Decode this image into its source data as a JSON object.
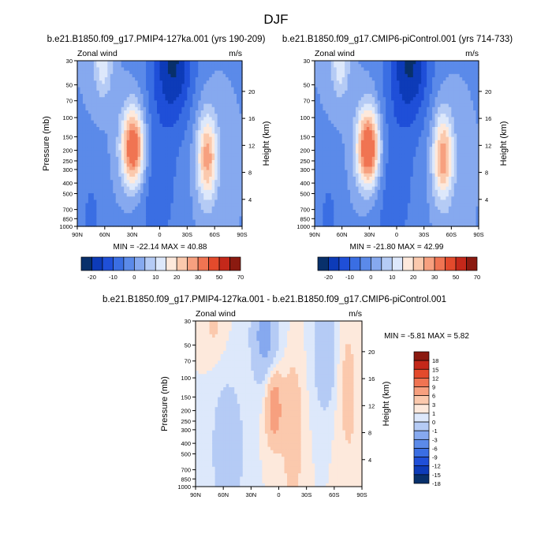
{
  "figure": {
    "title": "DJF"
  },
  "chart_data": [
    {
      "type": "heatmap",
      "id": "p1",
      "title": "b.e21.B1850.f09_g17.PMIP4-127ka.001 (yrs 190-209)",
      "left_label": "Zonal wind",
      "right_label": "m/s",
      "ylabel": "Pressure (mb)",
      "y2label": "Height (km)",
      "x_ticks": [
        "90N",
        "60N",
        "30N",
        "0",
        "30S",
        "60S",
        "90S"
      ],
      "y_ticks": [
        "30",
        "50",
        "70",
        "100",
        "150",
        "200",
        "250",
        "300",
        "400",
        "500",
        "700",
        "850",
        "1000"
      ],
      "y2_ticks": [
        "20",
        "16",
        "12",
        "8",
        "4"
      ],
      "stats": "MIN = -22.14   MAX =  40.88",
      "jets": [
        {
          "lat": 29,
          "p": 190,
          "value": 40.88
        },
        {
          "lat": -52,
          "p": 230,
          "value": 28
        }
      ],
      "min": -22.14,
      "max": 40.88
    },
    {
      "type": "heatmap",
      "id": "p2",
      "title": "b.e21.B1850.f09_g17.CMIP6-piControl.001 (yrs 714-733)",
      "left_label": "Zonal wind",
      "right_label": "m/s",
      "ylabel": "",
      "y2label": "Height (km)",
      "x_ticks": [
        "90N",
        "60N",
        "30N",
        "0",
        "30S",
        "60S",
        "90S"
      ],
      "y_ticks": [
        "30",
        "50",
        "70",
        "100",
        "150",
        "200",
        "250",
        "300",
        "400",
        "500",
        "700",
        "850",
        "1000"
      ],
      "y2_ticks": [
        "20",
        "16",
        "12",
        "8",
        "4"
      ],
      "stats": "MIN = -21.80   MAX =  42.99",
      "jets": [
        {
          "lat": 31,
          "p": 190,
          "value": 42.99
        },
        {
          "lat": -51,
          "p": 230,
          "value": 29
        }
      ],
      "min": -21.8,
      "max": 42.99
    },
    {
      "type": "heatmap",
      "id": "p3",
      "title": "b.e21.B1850.f09_g17.PMIP4-127ka.001 - b.e21.B1850.f09_g17.CMIP6-piControl.001",
      "left_label": "Zonal wind",
      "right_label": "m/s",
      "ylabel": "Pressure (mb)",
      "y2label": "Height (km)",
      "x_ticks": [
        "90N",
        "60N",
        "30N",
        "0",
        "30S",
        "60S",
        "90S"
      ],
      "y_ticks": [
        "30",
        "50",
        "70",
        "100",
        "150",
        "200",
        "250",
        "300",
        "400",
        "500",
        "700",
        "850",
        "1000"
      ],
      "y2_ticks": [
        "20",
        "16",
        "12",
        "8",
        "4"
      ],
      "stats": "MIN =  -5.81   MAX =   5.82",
      "min": -5.81,
      "max": 5.82
    }
  ],
  "colorbar_main": {
    "colors": [
      "#08306b",
      "#0d3bb8",
      "#1f4fd8",
      "#3a6ee3",
      "#5b8ae9",
      "#86a9ef",
      "#b5cbf5",
      "#dde8fb",
      "#fde9dc",
      "#fbc9ad",
      "#f7a07f",
      "#f07452",
      "#e34a2c",
      "#c4281a",
      "#8b1a10"
    ],
    "labels": [
      "-20",
      "-10",
      "0",
      "10",
      "20",
      "30",
      "50",
      "70"
    ]
  },
  "colorbar_diff": {
    "colors": [
      "#8b1a10",
      "#c4281a",
      "#e34a2c",
      "#f07452",
      "#f7a07f",
      "#fbc9ad",
      "#fde9dc",
      "#dde8fb",
      "#b5cbf5",
      "#86a9ef",
      "#5b8ae9",
      "#3a6ee3",
      "#1f4fd8",
      "#0d3bb8",
      "#08306b"
    ],
    "labels": [
      "18",
      "15",
      "12",
      "9",
      "6",
      "3",
      "1",
      "0",
      "-1",
      "-3",
      "-6",
      "-9",
      "-12",
      "-15",
      "-18"
    ]
  }
}
